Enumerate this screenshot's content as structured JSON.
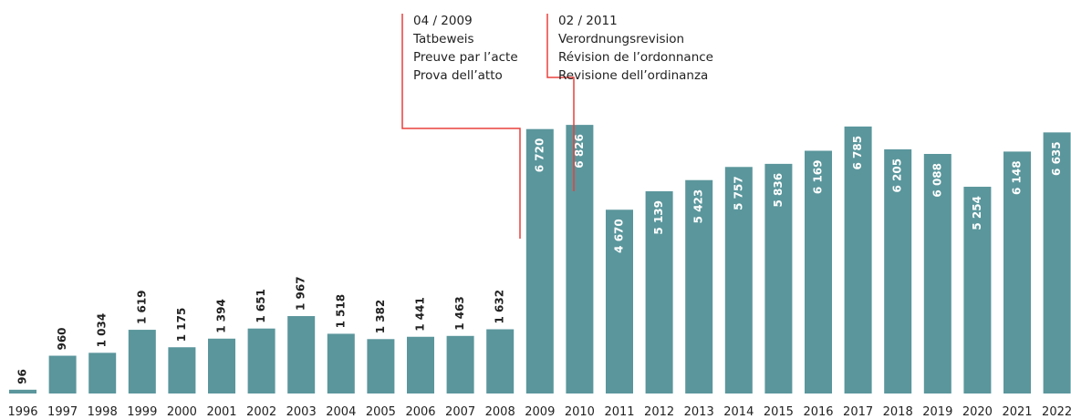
{
  "chart_data": {
    "type": "bar",
    "categories": [
      "1996",
      "1997",
      "1998",
      "1999",
      "2000",
      "2001",
      "2002",
      "2003",
      "2004",
      "2005",
      "2006",
      "2007",
      "2008",
      "2009",
      "2010",
      "2011",
      "2012",
      "2013",
      "2014",
      "2015",
      "2016",
      "2017",
      "2018",
      "2019",
      "2020",
      "2021",
      "2022"
    ],
    "values": [
      96,
      960,
      1034,
      1619,
      1175,
      1394,
      1651,
      1967,
      1518,
      1382,
      1441,
      1463,
      1632,
      6720,
      6826,
      4670,
      5139,
      5423,
      5757,
      5836,
      6169,
      6785,
      6205,
      6088,
      5254,
      6148,
      6635
    ],
    "value_labels": [
      "96",
      "960",
      "1 034",
      "1 619",
      "1 175",
      "1 394",
      "1 651",
      "1 967",
      "1 518",
      "1 382",
      "1 441",
      "1 463",
      "1 632",
      "6 720",
      "6 826",
      "4 670",
      "5 139",
      "5 423",
      "5 757",
      "5 836",
      "6 169",
      "6 785",
      "6 205",
      "6 088",
      "5 254",
      "6 148",
      "6 635"
    ],
    "color": "#5a969c",
    "annotations": [
      {
        "text": [
          "04 / 2009",
          "Tatbeweis",
          "Preuve par l’acte",
          "Prova dell’atto"
        ]
      },
      {
        "text": [
          "02 / 2011",
          "Verordnungsrevision",
          "Révision de l’ordonnance",
          "Revisione dell’ordinanza"
        ]
      }
    ]
  }
}
